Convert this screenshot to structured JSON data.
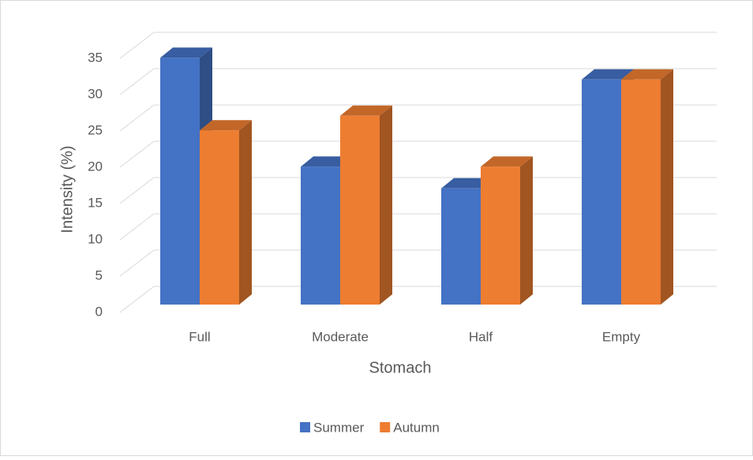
{
  "chart_data": {
    "type": "bar3d",
    "x_label": "Stomach",
    "y_label": "Intensity (%)",
    "categories": [
      "Full",
      "Moderate",
      "Half",
      "Empty"
    ],
    "series": [
      {
        "name": "Summer",
        "color": "#4472c4",
        "values": [
          34,
          19,
          16,
          31
        ]
      },
      {
        "name": "Autumn",
        "color": "#ed7d31",
        "values": [
          24,
          26,
          19,
          31
        ]
      }
    ],
    "ylim": [
      0,
      35
    ],
    "yticks": [
      0,
      5,
      10,
      15,
      20,
      25,
      30,
      35
    ],
    "grid": true,
    "legend": "bottom"
  }
}
